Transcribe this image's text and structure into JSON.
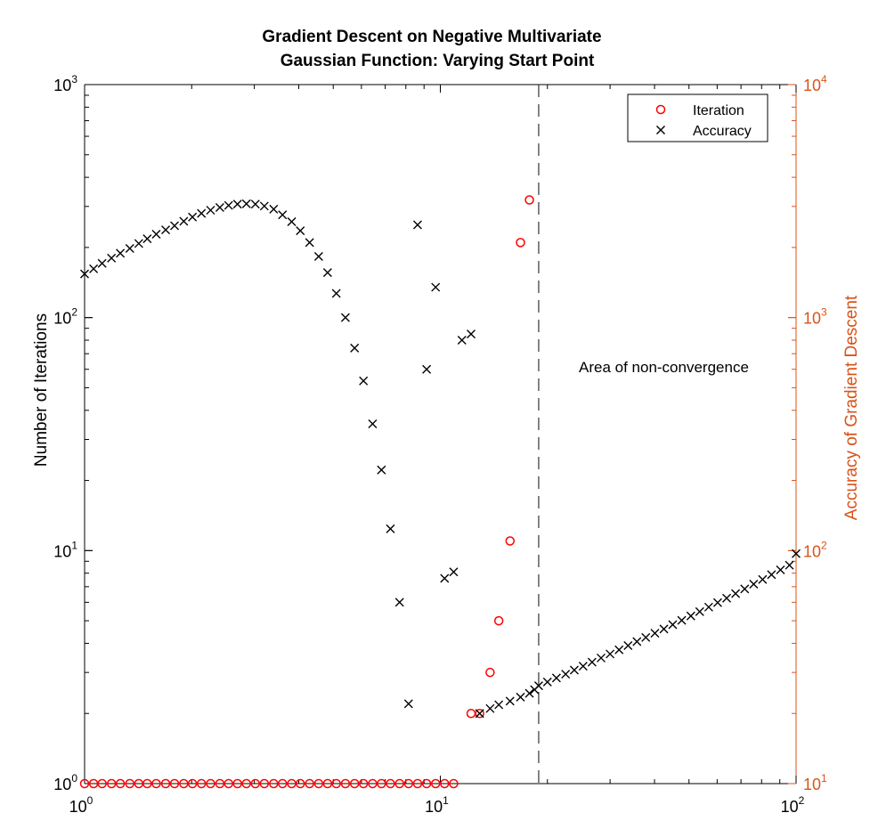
{
  "chart_data": {
    "type": "scatter",
    "title": [
      "Gradient Descent on Negative Multivariate",
      "Gaussian Function: Varying Start Point"
    ],
    "xscale": "log",
    "xlim": [
      1,
      100
    ],
    "y_left": {
      "label": "Number of Iterations",
      "scale": "log",
      "lim": [
        1,
        1000
      ],
      "color": "#000000"
    },
    "y_right": {
      "label": "Accuracy of Gradient Descent",
      "scale": "log",
      "lim": [
        10,
        10000
      ],
      "color": "#d95319"
    },
    "x_ticks": [
      {
        "base": "10",
        "exp": "0",
        "value": 1
      },
      {
        "base": "10",
        "exp": "1",
        "value": 10
      },
      {
        "base": "10",
        "exp": "2",
        "value": 100
      }
    ],
    "y_left_ticks": [
      {
        "base": "10",
        "exp": "0",
        "value": 1
      },
      {
        "base": "10",
        "exp": "1",
        "value": 10
      },
      {
        "base": "10",
        "exp": "2",
        "value": 100
      },
      {
        "base": "10",
        "exp": "3",
        "value": 1000
      }
    ],
    "y_right_ticks": [
      {
        "base": "10",
        "exp": "1",
        "value": 10
      },
      {
        "base": "10",
        "exp": "2",
        "value": 100
      },
      {
        "base": "10",
        "exp": "3",
        "value": 1000
      },
      {
        "base": "10",
        "exp": "4",
        "value": 10000
      }
    ],
    "legend": {
      "location": "top-right",
      "entries": [
        {
          "label": "Iteration",
          "marker": "o",
          "color": "#ff0000"
        },
        {
          "label": "Accuracy",
          "marker": "x",
          "color": "#000000"
        }
      ]
    },
    "annotation": {
      "text": "Area of non-convergence"
    },
    "vline_x": 18.9,
    "series": [
      {
        "name": "Iteration",
        "axis": "left",
        "marker": "o",
        "color": "#ff0000",
        "x": [
          1.0,
          1.06,
          1.12,
          1.19,
          1.26,
          1.34,
          1.42,
          1.5,
          1.59,
          1.69,
          1.79,
          1.9,
          2.01,
          2.13,
          2.26,
          2.4,
          2.54,
          2.69,
          2.85,
          3.02,
          3.2,
          3.4,
          3.6,
          3.82,
          4.04,
          4.29,
          4.55,
          4.82,
          5.1,
          5.41,
          5.74,
          6.08,
          6.45,
          6.83,
          7.24,
          7.68,
          8.14,
          8.63,
          9.15,
          9.7,
          10.28,
          10.9,
          12.2,
          12.9,
          13.8,
          14.6,
          15.7,
          16.8,
          17.8
        ],
        "y": [
          1,
          1,
          1,
          1,
          1,
          1,
          1,
          1,
          1,
          1,
          1,
          1,
          1,
          1,
          1,
          1,
          1,
          1,
          1,
          1,
          1,
          1,
          1,
          1,
          1,
          1,
          1,
          1,
          1,
          1,
          1,
          1,
          1,
          1,
          1,
          1,
          1,
          1,
          1,
          1,
          1,
          1,
          2,
          2,
          3,
          5,
          11,
          210,
          320
        ]
      },
      {
        "name": "Accuracy",
        "axis": "right",
        "marker": "x",
        "color": "#000000",
        "x": [
          1.0,
          1.06,
          1.12,
          1.19,
          1.26,
          1.34,
          1.42,
          1.5,
          1.59,
          1.69,
          1.79,
          1.9,
          2.01,
          2.13,
          2.26,
          2.4,
          2.54,
          2.69,
          2.85,
          3.02,
          3.2,
          3.4,
          3.6,
          3.82,
          4.04,
          4.29,
          4.55,
          4.82,
          5.1,
          5.41,
          5.74,
          6.08,
          6.45,
          6.83,
          7.24,
          7.68,
          8.14,
          8.63,
          9.15,
          9.7,
          10.28,
          10.9,
          11.5,
          12.2,
          12.9,
          13.8,
          14.6,
          15.7,
          16.8,
          17.8,
          18.4,
          18.9,
          20.0,
          21.2,
          22.5,
          23.8,
          25.2,
          26.7,
          28.3,
          30.0,
          31.8,
          33.7,
          35.7,
          37.8,
          40.1,
          42.5,
          45.0,
          47.7,
          50.6,
          53.6,
          56.8,
          60.2,
          63.8,
          67.6,
          71.7,
          76.0,
          80.5,
          85.3,
          90.4,
          95.8,
          100.0
        ],
        "y": [
          1540,
          1620,
          1710,
          1800,
          1890,
          1980,
          2080,
          2180,
          2280,
          2380,
          2480,
          2590,
          2700,
          2800,
          2890,
          2970,
          3030,
          3070,
          3080,
          3070,
          3010,
          2920,
          2760,
          2580,
          2360,
          2100,
          1830,
          1560,
          1270,
          1000,
          740,
          535,
          350,
          222,
          124,
          60,
          22,
          2500,
          600,
          1350,
          76,
          81,
          800,
          850,
          20,
          21,
          21.8,
          22.6,
          23.5,
          24.4,
          25.3,
          26.3,
          27.3,
          28.4,
          29.5,
          30.7,
          31.9,
          33.2,
          34.6,
          36.0,
          37.5,
          39.1,
          40.7,
          42.4,
          44.2,
          46.1,
          48.1,
          50.2,
          52.4,
          54.7,
          57.2,
          59.8,
          62.5,
          65.4,
          68.5,
          71.8,
          75.2,
          78.8,
          82.6,
          86.6,
          97
        ]
      }
    ]
  }
}
